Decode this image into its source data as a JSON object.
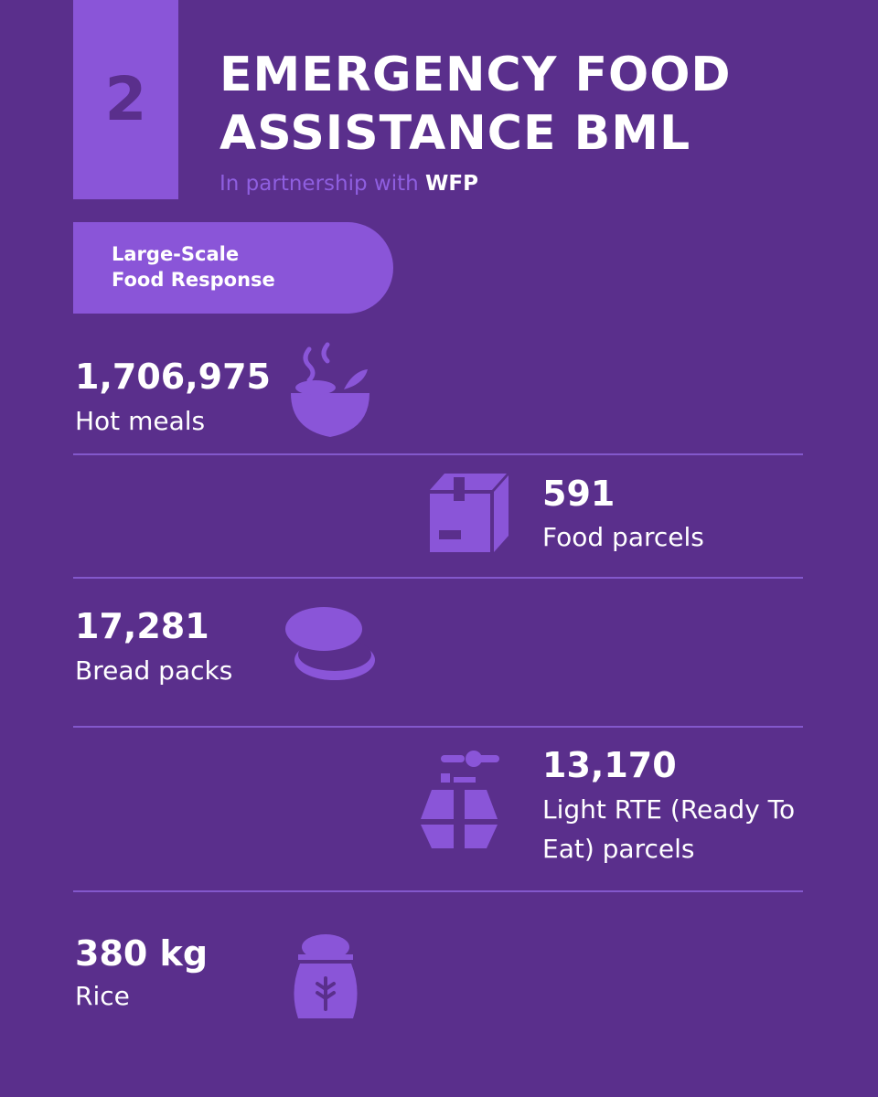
{
  "header": {
    "number": "2",
    "title_lines": [
      "EMERGENCY FOOD",
      "ASSISTANCE BML"
    ],
    "subtitle": "In partnership with",
    "partner": "WFP"
  },
  "tag_lines": [
    "Large-Scale",
    "Food Response"
  ],
  "items": [
    {
      "value": "1,706,975",
      "label": "Hot meals"
    },
    {
      "value": "591",
      "label": "Food parcels"
    },
    {
      "value": "17,281",
      "label": "Bread packs"
    },
    {
      "value": "13,170",
      "label": "Light RTE (Ready To Eat) parcels"
    },
    {
      "value": "380 kg",
      "label": "Rice"
    }
  ]
}
